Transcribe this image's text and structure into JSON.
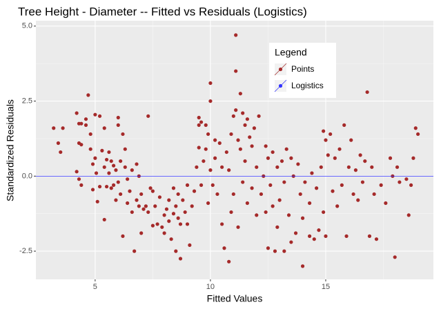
{
  "chart_data": {
    "type": "scatter",
    "title": "Tree Height - Diameter -- Fitted vs Residuals (Logistics)",
    "x_label": "Fitted Values",
    "y_label": "Standardized Residuals",
    "legend_title": "Legend",
    "legend_position": "top-right-inside",
    "xlim": [
      2.43,
      19.67
    ],
    "ylim": [
      -3.44,
      5.18
    ],
    "xticks": [
      5,
      10,
      15
    ],
    "yticks": [
      -2.5,
      {
        "value": 0,
        "label": "0.0"
      },
      2.5,
      {
        "value": 5,
        "label": "5.0"
      }
    ],
    "x_minor_grid": [
      7.5,
      12.5,
      17.5
    ],
    "y_minor_grid": [
      -1.25,
      1.25,
      3.75
    ],
    "grid": true,
    "series": [
      {
        "name": "Points",
        "color": "#a52a2a",
        "x": [
          3.2,
          3.4,
          3.5,
          3.6,
          4.2,
          4.3,
          4.4,
          4.3,
          4.4,
          4.2,
          4.3,
          4.4,
          4.6,
          4.6,
          4.7,
          4.8,
          4.8,
          4.9,
          4.9,
          5.0,
          5.0,
          5.05,
          5.1,
          5.2,
          5.2,
          5.3,
          5.4,
          5.4,
          5.4,
          5.5,
          5.5,
          5.6,
          5.6,
          5.7,
          5.7,
          5.8,
          5.8,
          5.9,
          5.9,
          6.0,
          6.0,
          6.0,
          6.1,
          6.1,
          6.2,
          6.2,
          6.3,
          6.3,
          6.4,
          6.4,
          6.5,
          6.6,
          6.6,
          6.7,
          6.8,
          6.8,
          6.9,
          6.9,
          7.0,
          7.0,
          7.1,
          7.2,
          7.3,
          7.3,
          7.4,
          7.5,
          7.5,
          7.6,
          7.7,
          7.8,
          7.9,
          8.0,
          8.0,
          8.1,
          8.2,
          8.2,
          8.3,
          8.4,
          8.4,
          8.5,
          8.5,
          8.6,
          8.6,
          8.7,
          8.7,
          8.8,
          8.9,
          9.0,
          9.0,
          9.1,
          9.2,
          9.3,
          9.4,
          9.5,
          9.5,
          9.5,
          9.6,
          9.6,
          9.7,
          9.8,
          9.8,
          9.9,
          9.9,
          10.0,
          10.0,
          10.0,
          10.1,
          10.2,
          10.2,
          10.3,
          10.4,
          10.5,
          10.5,
          10.6,
          10.7,
          10.8,
          10.8,
          10.9,
          10.9,
          11.0,
          11.0,
          11.1,
          11.1,
          11.1,
          11.2,
          11.2,
          11.3,
          11.3,
          11.4,
          11.4,
          11.5,
          11.5,
          11.6,
          11.6,
          11.7,
          11.8,
          11.8,
          11.9,
          12.0,
          12.0,
          12.1,
          12.2,
          12.3,
          12.4,
          12.4,
          12.5,
          12.5,
          12.6,
          12.7,
          12.7,
          12.8,
          12.9,
          12.9,
          13.0,
          13.1,
          13.2,
          13.2,
          13.3,
          13.4,
          13.5,
          13.5,
          13.6,
          13.7,
          13.8,
          13.9,
          14.0,
          14.0,
          14.1,
          14.3,
          14.3,
          14.4,
          14.5,
          14.6,
          14.7,
          14.8,
          14.9,
          14.9,
          15.0,
          15.0,
          15.1,
          15.2,
          15.3,
          15.4,
          15.5,
          15.6,
          15.7,
          15.8,
          15.9,
          16.0,
          16.1,
          16.2,
          16.3,
          16.4,
          16.5,
          16.6,
          16.7,
          16.8,
          16.9,
          17.0,
          17.1,
          17.2,
          17.4,
          17.6,
          17.8,
          17.9,
          18.0,
          18.1,
          18.2,
          18.5,
          18.6,
          18.7,
          18.8,
          18.9,
          19.0
        ],
        "y": [
          1.6,
          1.1,
          0.8,
          1.6,
          2.1,
          1.75,
          1.75,
          1.1,
          1.05,
          0.15,
          -0.1,
          -0.3,
          1.9,
          1.7,
          2.7,
          1.4,
          0.9,
          0.4,
          -0.45,
          2.05,
          0.6,
          0.1,
          -0.85,
          2.0,
          -0.35,
          0.85,
          -1.45,
          0.3,
          1.6,
          0.55,
          -0.35,
          0.8,
          0.1,
          0.5,
          -0.4,
          0.35,
          -0.3,
          -0.8,
          0.2,
          1.95,
          1.7,
          -0.2,
          0.5,
          -0.6,
          1.4,
          -2.0,
          0.9,
          0.3,
          -0.9,
          -0.1,
          -0.5,
          0.2,
          -1.2,
          -2.5,
          -0.8,
          0.4,
          -1.0,
          0.0,
          -1.9,
          -0.6,
          -1.1,
          -1.0,
          2.0,
          -1.2,
          -0.4,
          -0.5,
          -1.65,
          -1.0,
          -1.6,
          -0.7,
          -1.7,
          -1.3,
          -1.9,
          -1.1,
          -0.8,
          -1.5,
          -2.1,
          -1.25,
          -0.4,
          -2.5,
          -1.0,
          -1.4,
          -0.6,
          -2.75,
          -1.6,
          -0.8,
          -1.2,
          -1.6,
          -0.3,
          -2.3,
          -1.0,
          -0.5,
          0.3,
          1.95,
          1.7,
          0.95,
          1.8,
          -0.3,
          0.5,
          1.7,
          0.9,
          1.4,
          -0.9,
          3.1,
          2.5,
          0.2,
          -0.3,
          1.2,
          0.6,
          -0.6,
          1.1,
          -1.6,
          0.3,
          -2.4,
          0.8,
          -2.85,
          0.2,
          1.4,
          -1.2,
          2.0,
          -0.6,
          4.7,
          3.5,
          2.2,
          1.2,
          -1.7,
          2.75,
          0.9,
          2.1,
          -0.2,
          1.7,
          0.5,
          1.9,
          -0.9,
          1.3,
          1.0,
          -0.4,
          1.6,
          0.3,
          -1.3,
          2.0,
          -0.6,
          0.0,
          1.0,
          -1.2,
          0.6,
          -2.4,
          -0.3,
          0.8,
          -1.0,
          -2.5,
          0.3,
          -1.7,
          -0.8,
          0.5,
          -2.5,
          -0.2,
          0.9,
          -1.3,
          0.6,
          -2.2,
          0.0,
          -1.9,
          0.4,
          -0.6,
          -3.0,
          -1.4,
          -0.2,
          -2.0,
          -0.9,
          0.1,
          -2.1,
          -0.4,
          -1.8,
          0.3,
          1.5,
          -1.2,
          1.2,
          -2.0,
          0.7,
          1.4,
          -0.5,
          0.6,
          -1.0,
          0.9,
          -0.3,
          1.7,
          -2.0,
          0.3,
          1.2,
          -0.6,
          0.2,
          -0.8,
          0.7,
          -0.2,
          0.5,
          2.8,
          -2.0,
          0.3,
          -0.6,
          -2.1,
          -0.3,
          -0.9,
          0.6,
          0.0,
          -2.7,
          0.3,
          -0.2,
          -0.1,
          -1.3,
          -0.3,
          0.6,
          1.6,
          1.4
        ]
      },
      {
        "name": "Logistics",
        "color": "#3333ff",
        "hline": 0
      }
    ]
  }
}
